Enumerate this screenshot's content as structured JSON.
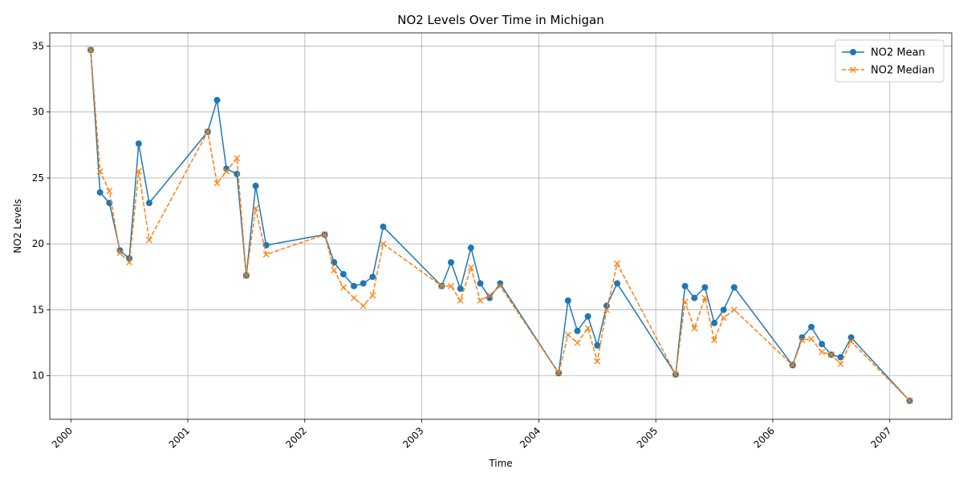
{
  "chart_data": {
    "type": "line",
    "title": "NO2 Levels Over Time in Michigan",
    "xlabel": "Time",
    "ylabel": "NO2 Levels",
    "xlim": [
      1999.82,
      2007.53
    ],
    "ylim": [
      6.7,
      36.0
    ],
    "x_ticks": [
      2000,
      2001,
      2002,
      2003,
      2004,
      2005,
      2006,
      2007
    ],
    "y_ticks": [
      10,
      15,
      20,
      25,
      30,
      35
    ],
    "grid": true,
    "legend_position": "top-right",
    "series": [
      {
        "name": "NO2 Mean",
        "color": "#1f77b4",
        "style": "solid",
        "marker": "circle",
        "x": [
          2000.17,
          2000.25,
          2000.33,
          2000.42,
          2000.5,
          2000.58,
          2000.67,
          2001.17,
          2001.25,
          2001.33,
          2001.42,
          2001.5,
          2001.58,
          2001.67,
          2002.17,
          2002.25,
          2002.33,
          2002.42,
          2002.5,
          2002.58,
          2002.67,
          2003.17,
          2003.25,
          2003.33,
          2003.42,
          2003.5,
          2003.58,
          2003.67,
          2004.17,
          2004.25,
          2004.33,
          2004.42,
          2004.5,
          2004.58,
          2004.67,
          2005.17,
          2005.25,
          2005.33,
          2005.42,
          2005.5,
          2005.58,
          2005.67,
          2006.17,
          2006.25,
          2006.33,
          2006.42,
          2006.5,
          2006.58,
          2006.67,
          2007.17
        ],
        "y": [
          34.7,
          23.9,
          23.1,
          19.5,
          18.9,
          27.6,
          23.1,
          28.5,
          30.9,
          25.7,
          25.3,
          17.6,
          24.4,
          19.9,
          20.7,
          18.6,
          17.7,
          16.8,
          17.0,
          17.5,
          21.3,
          16.8,
          18.6,
          16.6,
          19.7,
          17.0,
          15.9,
          17.0,
          10.2,
          15.7,
          13.4,
          14.5,
          12.3,
          15.3,
          17.0,
          10.1,
          16.8,
          15.9,
          16.7,
          14.0,
          15.0,
          16.7,
          10.8,
          12.9,
          13.7,
          12.4,
          11.6,
          11.4,
          12.9,
          8.1
        ]
      },
      {
        "name": "NO2 Median",
        "color": "#ff7f0e",
        "style": "dashed",
        "marker": "x",
        "x": [
          2000.17,
          2000.25,
          2000.33,
          2000.42,
          2000.5,
          2000.58,
          2000.67,
          2001.17,
          2001.25,
          2001.33,
          2001.42,
          2001.5,
          2001.58,
          2001.67,
          2002.17,
          2002.25,
          2002.33,
          2002.42,
          2002.5,
          2002.58,
          2002.67,
          2003.17,
          2003.25,
          2003.33,
          2003.42,
          2003.5,
          2003.58,
          2003.67,
          2004.17,
          2004.25,
          2004.33,
          2004.42,
          2004.5,
          2004.58,
          2004.67,
          2005.17,
          2005.25,
          2005.33,
          2005.42,
          2005.5,
          2005.58,
          2005.67,
          2006.17,
          2006.25,
          2006.33,
          2006.42,
          2006.5,
          2006.58,
          2006.67,
          2007.17
        ],
        "y": [
          34.7,
          25.5,
          24.0,
          19.3,
          18.6,
          25.5,
          20.3,
          28.5,
          24.6,
          25.5,
          26.5,
          17.6,
          22.7,
          19.2,
          20.7,
          18.0,
          16.7,
          15.9,
          15.3,
          16.1,
          20.0,
          16.8,
          16.8,
          15.7,
          18.2,
          15.7,
          16.1,
          16.8,
          10.2,
          13.1,
          12.5,
          13.6,
          11.1,
          15.0,
          18.5,
          10.1,
          15.6,
          13.6,
          15.9,
          12.7,
          14.4,
          15.0,
          10.8,
          12.7,
          12.8,
          11.8,
          11.6,
          10.9,
          12.6,
          8.1
        ]
      }
    ]
  }
}
